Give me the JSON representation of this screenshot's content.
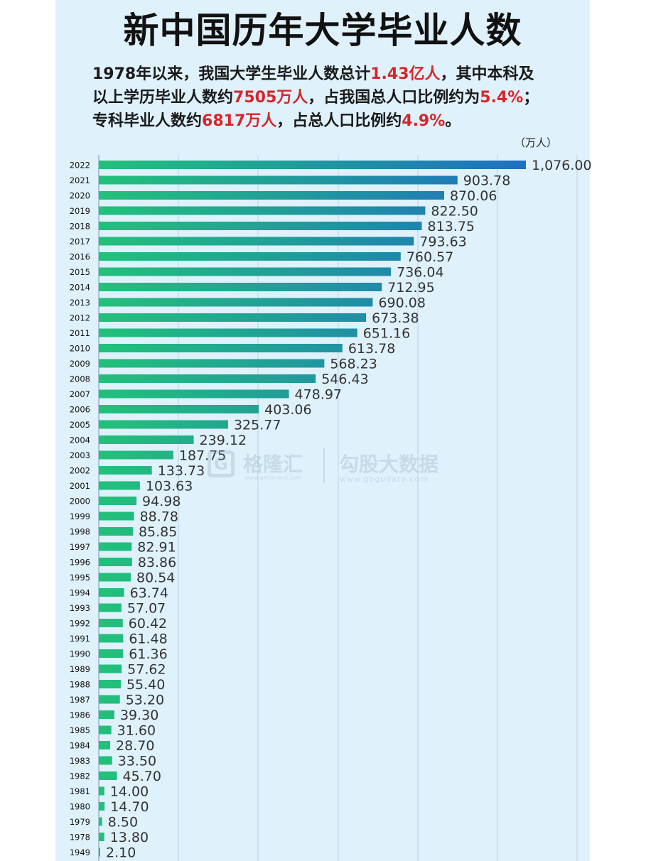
{
  "header": {
    "title": "新中国历年大学毕业人数",
    "line1_a": "1978年以来，我国大学生毕业人数总计",
    "line1_hl": "1.43亿人",
    "line1_b": "，其中本科及",
    "line2_a": "以上学历毕业人数约",
    "line2_hl1": "7505万人",
    "line2_b": "，占我国总人口比例约为",
    "line2_hl2": "5.4%",
    "line2_c": "；",
    "line3_a": "专科毕业人数约",
    "line3_hl1": "6817万人",
    "line3_b": "，占总人口比例约",
    "line3_hl2": "4.9%",
    "line3_c": "。",
    "unit": "（万人）"
  },
  "watermark": {
    "logo_letter": "G",
    "name1": "格隆汇",
    "url1": "www.gelonghui.com",
    "name2": "勾股大数据",
    "url2": "www.gogudata.com"
  },
  "colors": {
    "background": "#dff1fb",
    "bar_start": "#22c17a",
    "bar_end": "#1f6fc1",
    "highlight": "#d6262b",
    "grid": "#b9d3e3"
  },
  "chart_data": {
    "type": "bar",
    "orientation": "horizontal",
    "xlim": [
      0,
      1076
    ],
    "grid": true,
    "categories": [
      "2022",
      "2021",
      "2020",
      "2019",
      "2018",
      "2017",
      "2016",
      "2015",
      "2014",
      "2013",
      "2012",
      "2011",
      "2010",
      "2009",
      "2008",
      "2007",
      "2006",
      "2005",
      "2004",
      "2003",
      "2002",
      "2001",
      "2000",
      "1999",
      "1998",
      "1997",
      "1996",
      "1995",
      "1994",
      "1993",
      "1992",
      "1991",
      "1990",
      "1989",
      "1988",
      "1987",
      "1986",
      "1985",
      "1984",
      "1983",
      "1982",
      "1981",
      "1980",
      "1979",
      "1978",
      "1949"
    ],
    "values": [
      1076.0,
      903.78,
      870.06,
      822.5,
      813.75,
      793.63,
      760.57,
      736.04,
      712.95,
      690.08,
      673.38,
      651.16,
      613.78,
      568.23,
      546.43,
      478.97,
      403.06,
      325.77,
      239.12,
      187.75,
      133.73,
      103.63,
      94.98,
      88.78,
      85.85,
      82.91,
      83.86,
      80.54,
      63.74,
      57.07,
      60.42,
      61.48,
      61.36,
      57.62,
      55.4,
      53.2,
      39.3,
      31.6,
      28.7,
      33.5,
      45.7,
      14.0,
      14.7,
      8.5,
      13.8,
      2.1
    ],
    "labels": [
      "1,076.00",
      "903.78",
      "870.06",
      "822.50",
      "813.75",
      "793.63",
      "760.57",
      "736.04",
      "712.95",
      "690.08",
      "673.38",
      "651.16",
      "613.78",
      "568.23",
      "546.43",
      "478.97",
      "403.06",
      "325.77",
      "239.12",
      "187.75",
      "133.73",
      "103.63",
      "94.98",
      "88.78",
      "85.85",
      "82.91",
      "83.86",
      "80.54",
      "63.74",
      "57.07",
      "60.42",
      "61.48",
      "61.36",
      "57.62",
      "55.40",
      "53.20",
      "39.30",
      "31.60",
      "28.70",
      "33.50",
      "45.70",
      "14.00",
      "14.70",
      "8.50",
      "13.80",
      "2.10"
    ]
  }
}
